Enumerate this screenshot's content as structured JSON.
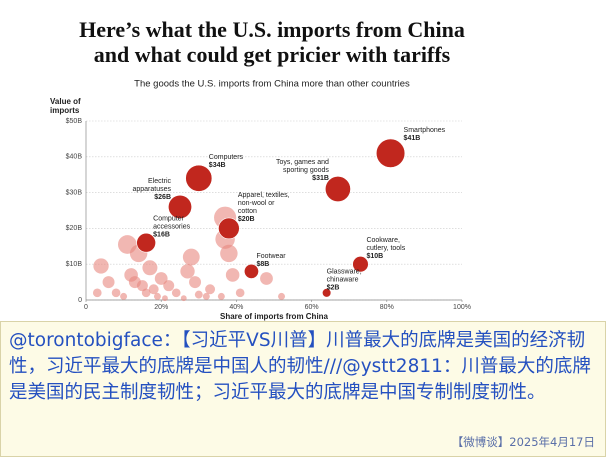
{
  "chart_data": {
    "type": "scatter",
    "title": [
      "Here’s what the U.S. imports from China",
      "and what could get pricier with tariffs"
    ],
    "subtitle": "The goods the U.S. imports from China more than other countries",
    "y_label": [
      "Value of",
      "imports"
    ],
    "x_label": "Share of imports from China",
    "xlim": [
      0,
      100
    ],
    "xticks": [
      0,
      {
        "value": 20,
        "label": "20%"
      },
      {
        "value": 40,
        "label": "40%"
      },
      {
        "value": 60,
        "label": "60%"
      },
      {
        "value": 80,
        "label": "80%"
      },
      {
        "value": 100,
        "label": "100%"
      }
    ],
    "ylim": [
      0,
      50
    ],
    "yticks": [
      0,
      {
        "value": 10,
        "label": "$10B"
      },
      {
        "value": 20,
        "label": "$20B"
      },
      {
        "value": 30,
        "label": "$30B"
      },
      {
        "value": 40,
        "label": "$40B"
      },
      {
        "value": 50,
        "label": "$50B"
      }
    ],
    "grid": true,
    "color": "#c1271e",
    "background_color": "#e8877f",
    "points": [
      {
        "label": [
          "Smartphones"
        ],
        "value_label": "$41B",
        "x": 81,
        "y": 41
      },
      {
        "label": [
          "Toys, games and",
          "sporting goods"
        ],
        "value_label": "$31B",
        "x": 67,
        "y": 31
      },
      {
        "label": [
          "Computers"
        ],
        "value_label": "$34B",
        "x": 30,
        "y": 34
      },
      {
        "label": [
          "Electric",
          "apparatuses"
        ],
        "value_label": "$26B",
        "x": 25,
        "y": 26
      },
      {
        "label": [
          "Apparel, textiles,",
          "non-wool or",
          "cotton"
        ],
        "value_label": "$20B",
        "x": 38,
        "y": 20
      },
      {
        "label": [
          "Computer",
          "accessories"
        ],
        "value_label": "$16B",
        "x": 16,
        "y": 16
      },
      {
        "label": [
          "Footwear"
        ],
        "value_label": "$8B",
        "x": 44,
        "y": 8
      },
      {
        "label": [
          "Cookware,",
          "cutlery, tools"
        ],
        "value_label": "$10B",
        "x": 73,
        "y": 10
      },
      {
        "label": [
          "Glassware,",
          "chinaware"
        ],
        "value_label": "$2B",
        "x": 64,
        "y": 2
      }
    ],
    "background": {
      "x": [
        4,
        11,
        12,
        13,
        14,
        15,
        16,
        17,
        18,
        20,
        22,
        24,
        27,
        28,
        29,
        32,
        33,
        36,
        37,
        37,
        38,
        39,
        41,
        48,
        52,
        3,
        6,
        8,
        10,
        19,
        21,
        26,
        30
      ],
      "y": [
        9.5,
        15.5,
        7,
        5,
        13,
        4,
        2,
        9,
        3,
        6,
        4,
        2,
        8,
        12,
        5,
        1,
        3,
        1,
        23,
        17,
        13,
        7,
        2,
        6,
        1,
        2,
        5,
        2,
        1,
        1,
        0.5,
        0.5,
        1.5
      ]
    }
  },
  "caption": {
    "text": "@torontobigface：【习近平VS川普】川普最大的底牌是美国的经济韧性，习近平最大的底牌是中国人的韧性///@ystt2811：川普最大的底牌是美国的民主制度韧性；习近平最大的底牌是中国专制制度韧性。",
    "footer": "【微博谈】2025年4月17日"
  }
}
